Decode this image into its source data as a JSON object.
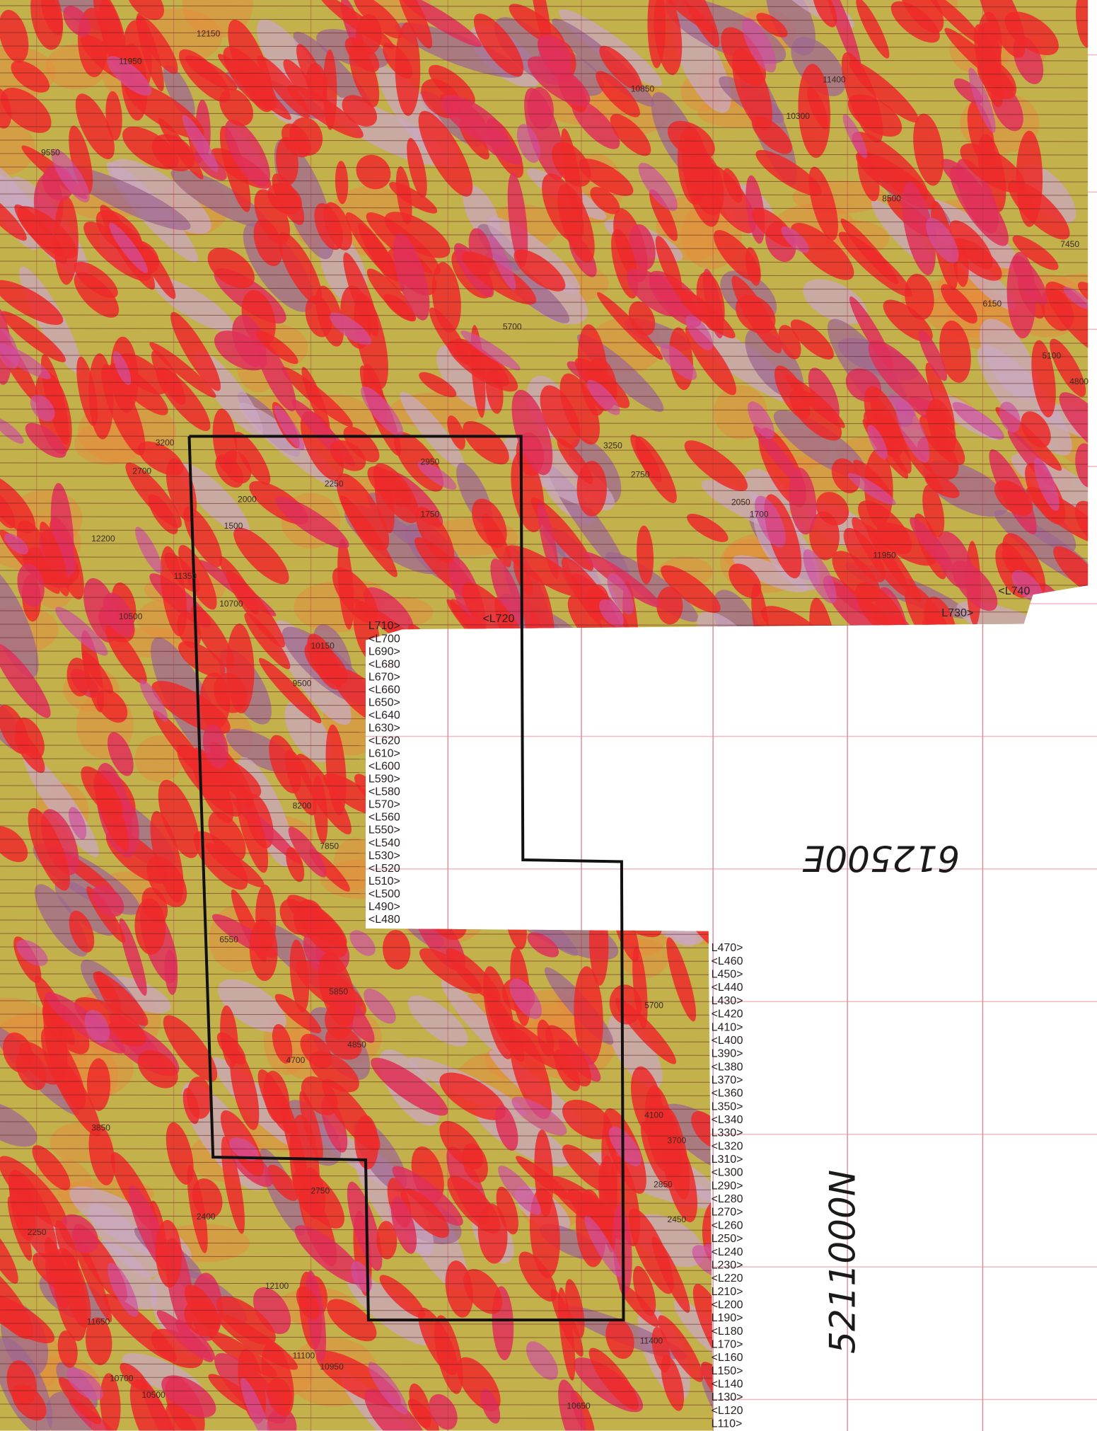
{
  "map": {
    "handwritten": {
      "easting": "612500E",
      "northing": "5211000N"
    },
    "line_labels_top": [
      "<L720",
      "L730>",
      "<L740"
    ],
    "line_labels_middle": [
      "L710>",
      "<L700",
      "L690>",
      "<L680",
      "L670>",
      "<L660",
      "L650>",
      "<L640",
      "L630>",
      "<L620",
      "L610>",
      "<L600",
      "L590>",
      "<L580",
      "L570>",
      "<L560",
      "L550>",
      "<L540",
      "L530>",
      "<L520",
      "L510>",
      "<L500",
      "L490>",
      "<L480"
    ],
    "line_labels_bottom": [
      "L470>",
      "<L460",
      "L450>",
      "<L440",
      "L430>",
      "<L420",
      "L410>",
      "<L400",
      "L390>",
      "<L380",
      "L370>",
      "<L360",
      "L350>",
      "<L340",
      "L330>",
      "<L320",
      "L310>",
      "<L300",
      "L290>",
      "<L280",
      "L270>",
      "<L260",
      "L250>",
      "<L240",
      "L230>",
      "<L220",
      "L210>",
      "<L200",
      "L190>",
      "<L180",
      "L170>",
      "<L160",
      "L150>",
      "<L140",
      "L130>",
      "<L120",
      "L110>"
    ],
    "stations": [
      "12150",
      "11950",
      "10850",
      "11400",
      "10300",
      "9550",
      "8500",
      "7450",
      "6150",
      "5700",
      "5100",
      "4800",
      "3200",
      "2700",
      "2000",
      "1500",
      "2250",
      "1750",
      "2950",
      "3250",
      "2750",
      "2050",
      "1700",
      "11950",
      "12200",
      "11350",
      "10700",
      "10500",
      "10150",
      "9500",
      "8200",
      "7850",
      "6550",
      "5850",
      "5700",
      "4850",
      "4700",
      "4100",
      "3850",
      "3700",
      "2850",
      "2750",
      "2400",
      "2450",
      "2250",
      "12100",
      "11650",
      "11400",
      "11100",
      "10950",
      "10700",
      "10500",
      "10650"
    ]
  }
}
